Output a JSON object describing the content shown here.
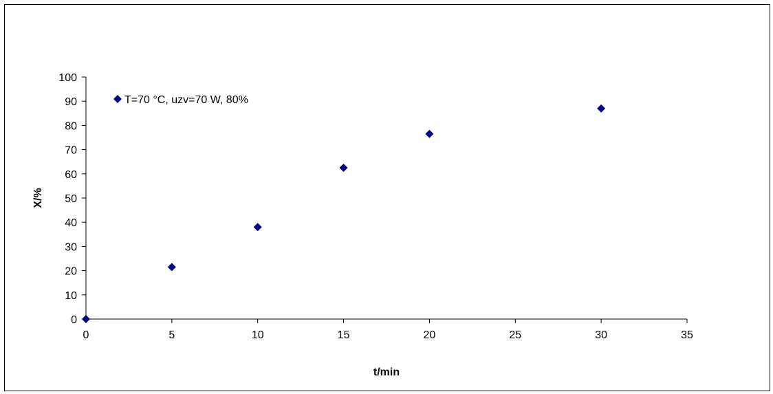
{
  "chart_data": {
    "type": "scatter",
    "title": "",
    "xlabel": "t/min",
    "ylabel": "X/%",
    "xlim": [
      0,
      35
    ],
    "ylim": [
      0,
      100
    ],
    "xticks": [
      0,
      5,
      10,
      15,
      20,
      25,
      30,
      35
    ],
    "yticks": [
      0,
      10,
      20,
      30,
      40,
      50,
      60,
      70,
      80,
      90,
      100
    ],
    "grid": false,
    "legend_position": "top-left",
    "series": [
      {
        "name": "T=70 °C, uzv=70 W, 80%",
        "color": "#000080",
        "marker": "diamond",
        "points": [
          {
            "x": 0,
            "y": 0
          },
          {
            "x": 5,
            "y": 21.5
          },
          {
            "x": 10,
            "y": 38
          },
          {
            "x": 15,
            "y": 62.5
          },
          {
            "x": 20,
            "y": 76.5
          },
          {
            "x": 30,
            "y": 87
          }
        ]
      }
    ]
  }
}
